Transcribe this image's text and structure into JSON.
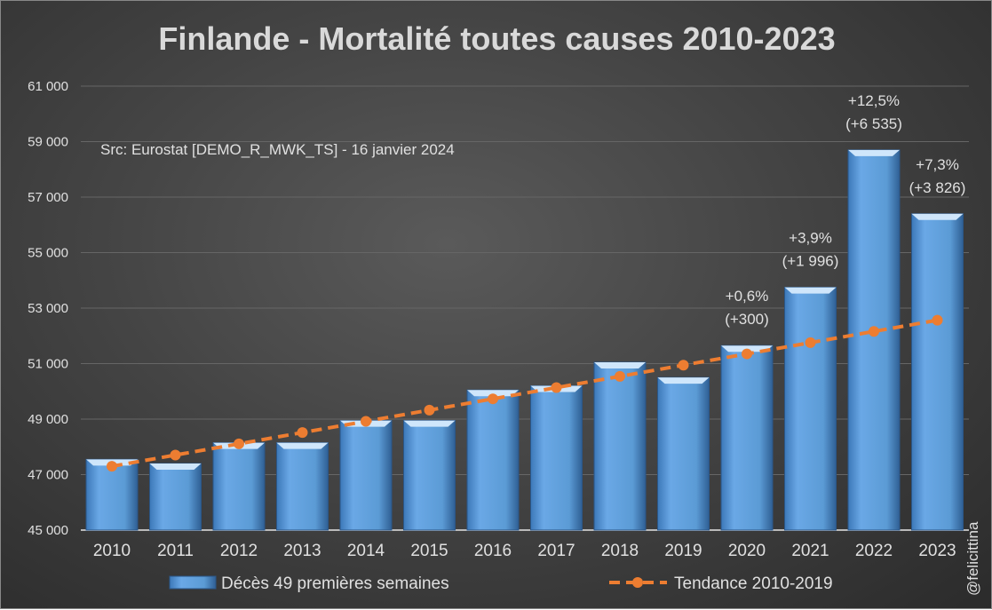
{
  "chart_data": {
    "type": "bar",
    "title": "Finlande - Mortalité toutes causes 2010-2023",
    "subtitle": "Src: Eurostat [DEMO_R_MWK_TS] - 16 janvier 2024",
    "watermark": "@felicittina",
    "categories": [
      "2010",
      "2011",
      "2012",
      "2013",
      "2014",
      "2015",
      "2016",
      "2017",
      "2018",
      "2019",
      "2020",
      "2021",
      "2022",
      "2023"
    ],
    "series": [
      {
        "name": "Décès 49 premières semaines",
        "type": "bar",
        "color": "#5b9bd5",
        "values": [
          47550,
          47400,
          48150,
          48150,
          48950,
          48950,
          50050,
          50200,
          51050,
          50500,
          51650,
          53750,
          58700,
          56400
        ]
      },
      {
        "name": "Tendance 2010-2019",
        "type": "line",
        "style": "dashed",
        "color": "#ed7d31",
        "values": [
          47300,
          47705,
          48110,
          48515,
          48920,
          49325,
          49730,
          50135,
          50540,
          50945,
          51350,
          51755,
          52160,
          52565
        ]
      }
    ],
    "annotations": [
      {
        "category": "2020",
        "pct": "+0,6%",
        "abs": "(+300)"
      },
      {
        "category": "2021",
        "pct": "+3,9%",
        "abs": "(+1 996)"
      },
      {
        "category": "2022",
        "pct": "+12,5%",
        "abs": "(+6 535)"
      },
      {
        "category": "2023",
        "pct": "+7,3%",
        "abs": "(+3 826)"
      }
    ],
    "yticks": [
      "45 000",
      "47 000",
      "49 000",
      "51 000",
      "53 000",
      "55 000",
      "57 000",
      "59 000",
      "61 000"
    ],
    "ytick_values": [
      45000,
      47000,
      49000,
      51000,
      53000,
      55000,
      57000,
      59000,
      61000
    ],
    "ylim": [
      45000,
      61000
    ],
    "grid": true,
    "legend_position": "bottom"
  }
}
